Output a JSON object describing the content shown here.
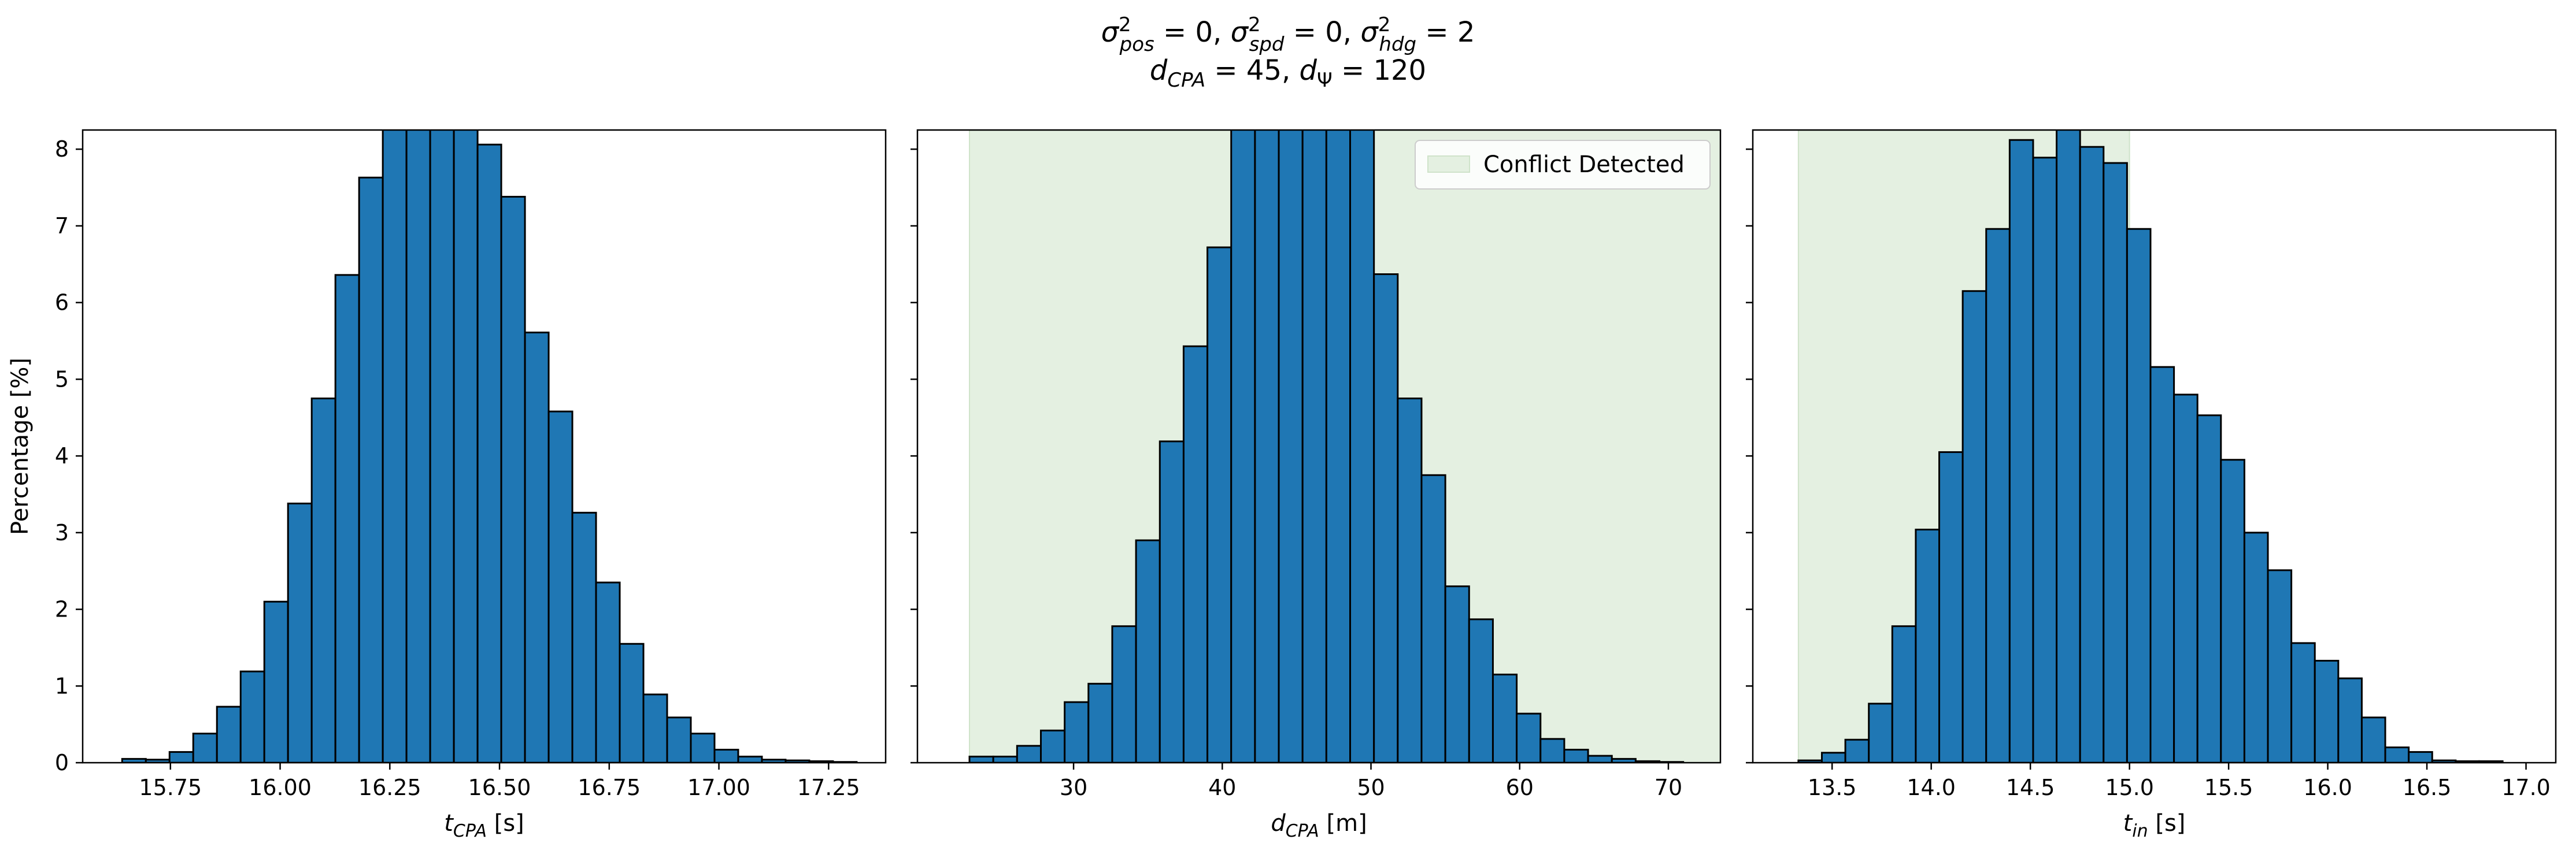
{
  "figure": {
    "title_line1": "σ²pos = 0, σ²spd = 0, σ²hdg = 2",
    "title_line2": "dCPA = 45, dΨ = 120"
  },
  "chart_data": [
    {
      "type": "bar",
      "xlabel": "tCPA [s]",
      "ylabel": "Percentage [%]",
      "xlim": [
        15.55,
        17.38
      ],
      "ylim": [
        0,
        8.25
      ],
      "xticks": [
        "15.75",
        "16.00",
        "16.25",
        "16.50",
        "16.75",
        "17.00",
        "17.25"
      ],
      "yticks": [
        "0",
        "1",
        "2",
        "3",
        "4",
        "5",
        "6",
        "7",
        "8"
      ],
      "bin_edges": [
        15.64,
        15.694,
        15.748,
        15.802,
        15.856,
        15.91,
        15.964,
        16.018,
        16.072,
        16.126,
        16.18,
        16.234,
        16.288,
        16.342,
        16.396,
        16.45,
        16.504,
        16.558,
        16.612,
        16.666,
        16.72,
        16.774,
        16.828,
        16.882,
        16.936,
        16.99,
        17.044,
        17.098,
        17.152,
        17.206,
        17.26,
        17.314
      ],
      "values": [
        0.05,
        0.04,
        0.14,
        0.38,
        0.73,
        1.19,
        2.1,
        3.38,
        4.75,
        6.36,
        7.63,
        9.0,
        9.9,
        10.2,
        9.6,
        8.06,
        7.38,
        5.61,
        4.58,
        3.26,
        2.35,
        1.55,
        0.89,
        0.59,
        0.38,
        0.17,
        0.08,
        0.04,
        0.03,
        0.02,
        0.01
      ],
      "bar_color": "#1f77b4",
      "edge_color": "#000000",
      "conflict_span": null,
      "legend": null
    },
    {
      "type": "bar",
      "xlabel": "dCPA [m]",
      "ylabel": "",
      "xlim": [
        19.5,
        73.5
      ],
      "ylim": [
        0,
        8.25
      ],
      "xticks": [
        "30",
        "40",
        "50",
        "60",
        "70"
      ],
      "yticks": [],
      "bin_edges": [
        23,
        24.6,
        26.2,
        27.8,
        29.4,
        31,
        32.6,
        34.2,
        35.8,
        37.4,
        39,
        40.6,
        42.2,
        43.8,
        45.4,
        47,
        48.6,
        50.2,
        51.8,
        53.4,
        55,
        56.6,
        58.2,
        59.8,
        61.4,
        63,
        64.6,
        66.2,
        67.8,
        69.4,
        71
      ],
      "values": [
        0.08,
        0.08,
        0.22,
        0.42,
        0.79,
        1.03,
        1.78,
        2.9,
        4.19,
        5.43,
        6.72,
        9.5,
        10.0,
        10.3,
        10.0,
        9.7,
        9.5,
        6.37,
        4.75,
        3.75,
        2.3,
        1.87,
        1.15,
        0.64,
        0.31,
        0.17,
        0.09,
        0.05,
        0.02,
        0.01
      ],
      "bar_color": "#1f77b4",
      "edge_color": "#000000",
      "conflict_span": [
        23,
        75
      ],
      "span_color": "#e4f0e1",
      "legend": {
        "label": "Conflict Detected",
        "position": "top-right"
      }
    },
    {
      "type": "bar",
      "xlabel": "tin [s]",
      "ylabel": "",
      "xlim": [
        13.1,
        17.15
      ],
      "ylim": [
        0,
        8.25
      ],
      "xticks": [
        "13.5",
        "14.0",
        "14.5",
        "15.0",
        "15.5",
        "16.0",
        "16.5",
        "17.0"
      ],
      "yticks": [],
      "bin_edges": [
        13.33,
        13.4484,
        13.5668,
        13.6852,
        13.8036,
        13.922,
        14.0404,
        14.1588,
        14.2772,
        14.3956,
        14.514,
        14.6324,
        14.7508,
        14.8692,
        14.9876,
        15.106,
        15.2244,
        15.3428,
        15.4612,
        15.5796,
        15.698,
        15.8164,
        15.9348,
        16.0532,
        16.1716,
        16.29,
        16.4084,
        16.5268,
        16.6452,
        16.7636,
        16.882
      ],
      "values": [
        0.03,
        0.13,
        0.3,
        0.77,
        1.78,
        3.04,
        4.05,
        6.15,
        6.96,
        8.12,
        7.89,
        8.4,
        8.03,
        7.82,
        6.96,
        5.16,
        4.8,
        4.53,
        3.95,
        3.0,
        2.51,
        1.56,
        1.33,
        1.1,
        0.59,
        0.2,
        0.14,
        0.03,
        0.02,
        0.02
      ],
      "bar_color": "#1f77b4",
      "edge_color": "#000000",
      "conflict_span": [
        13.33,
        15.0
      ],
      "span_color": "#e4f0e1",
      "legend": null
    }
  ]
}
